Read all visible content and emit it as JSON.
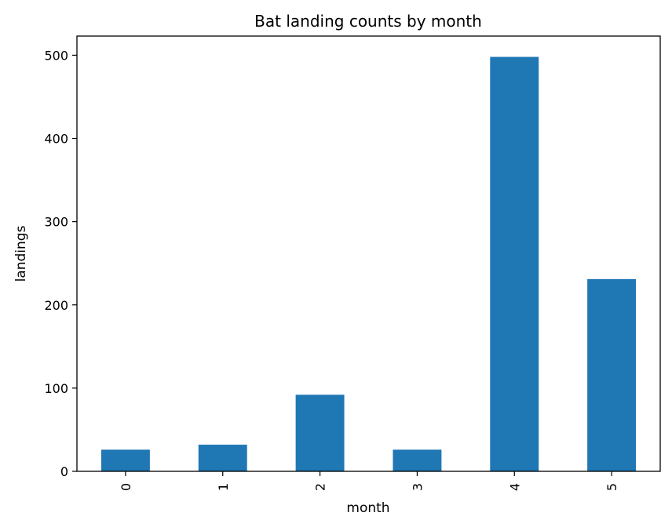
{
  "chart_data": {
    "type": "bar",
    "title": "Bat landing counts by month",
    "xlabel": "month",
    "ylabel": "landings",
    "categories": [
      "0",
      "1",
      "2",
      "3",
      "4",
      "5"
    ],
    "values": [
      26,
      32,
      92,
      26,
      498,
      231
    ],
    "ylim": [
      0,
      523
    ],
    "yticks": [
      0,
      100,
      200,
      300,
      400,
      500
    ],
    "grid": false,
    "legend": "none",
    "bar_color": "#1f77b4"
  }
}
